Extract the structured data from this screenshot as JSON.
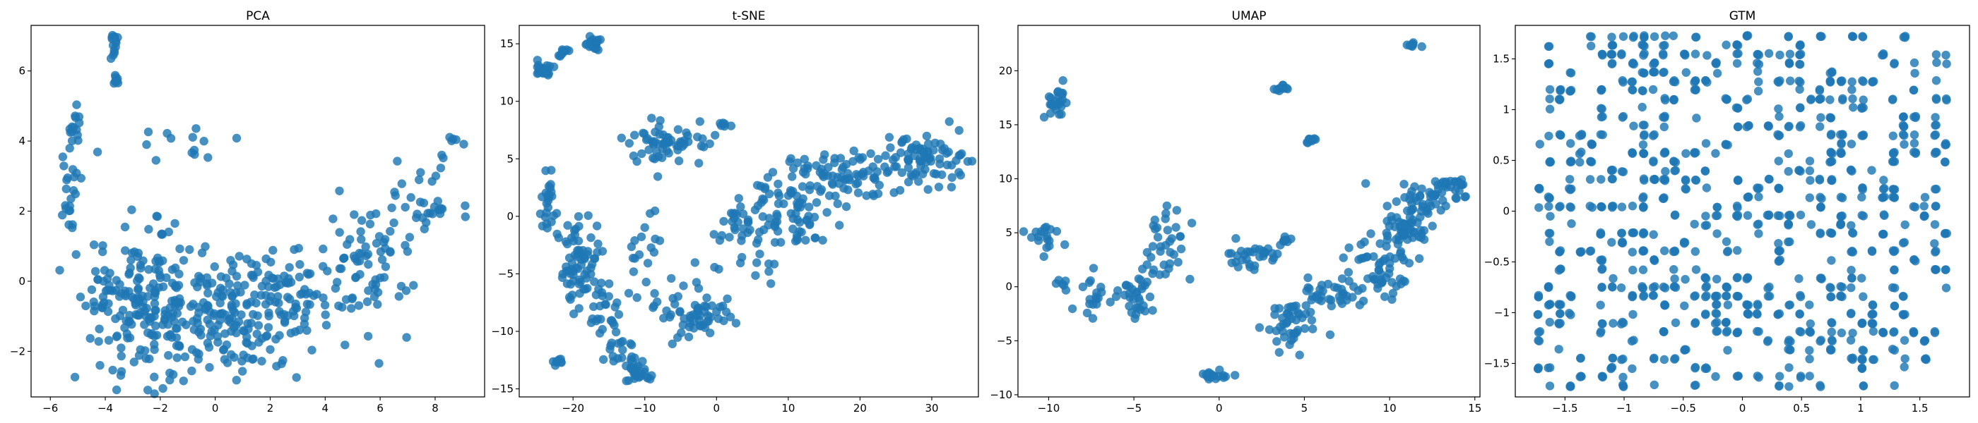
{
  "colors": {
    "points": "#1f77b4"
  },
  "chart_data": [
    {
      "type": "scatter",
      "title": "PCA",
      "xlim": [
        -6.7,
        9.8
      ],
      "ylim": [
        -3.3,
        7.3
      ],
      "xticks": [
        -6,
        -4,
        -2,
        0,
        2,
        4,
        6,
        8
      ],
      "yticks": [
        -2,
        0,
        2,
        4,
        6
      ],
      "grid": false,
      "clusters": [
        {
          "cx": -3.7,
          "cy": 6.8,
          "sx": 0.08,
          "sy": 0.25,
          "n": 14
        },
        {
          "cx": -3.6,
          "cy": 5.7,
          "sx": 0.06,
          "sy": 0.1,
          "n": 8
        },
        {
          "cx": -5.1,
          "cy": 4.3,
          "sx": 0.12,
          "sy": 0.3,
          "n": 12
        },
        {
          "cx": -5.3,
          "cy": 2.8,
          "sx": 0.18,
          "sy": 0.9,
          "n": 26
        },
        {
          "cx": -2.5,
          "cy": -0.7,
          "sx": 1.0,
          "sy": 1.0,
          "n": 180
        },
        {
          "cx": 0.5,
          "cy": -1.0,
          "sx": 1.3,
          "sy": 0.9,
          "n": 170
        },
        {
          "cx": 3.0,
          "cy": -0.4,
          "sx": 1.1,
          "sy": 0.6,
          "n": 70
        },
        {
          "cx": 5.5,
          "cy": 0.6,
          "sx": 0.9,
          "sy": 1.0,
          "n": 70
        },
        {
          "cx": 7.6,
          "cy": 2.4,
          "sx": 0.7,
          "sy": 0.6,
          "n": 30
        },
        {
          "cx": 8.8,
          "cy": 4.0,
          "sx": 0.25,
          "sy": 0.08,
          "n": 5
        },
        {
          "cx": -1.0,
          "cy": 3.9,
          "sx": 1.3,
          "sy": 0.4,
          "n": 14
        },
        {
          "cx": -4.2,
          "cy": -0.3,
          "sx": 0.2,
          "sy": 0.7,
          "n": 15
        }
      ]
    },
    {
      "type": "scatter",
      "title": "t-SNE",
      "xlim": [
        -27.5,
        36.5
      ],
      "ylim": [
        -15.7,
        16.6
      ],
      "xticks": [
        -20,
        -10,
        0,
        10,
        20,
        30
      ],
      "yticks": [
        -15,
        -10,
        -5,
        0,
        5,
        10,
        15
      ],
      "grid": false,
      "clusters": [
        {
          "cx": -24,
          "cy": 12.8,
          "sx": 0.8,
          "sy": 0.4,
          "n": 20
        },
        {
          "cx": -21.5,
          "cy": 14.3,
          "sx": 0.5,
          "sy": 0.3,
          "n": 10
        },
        {
          "cx": -17,
          "cy": 15.0,
          "sx": 0.5,
          "sy": 0.3,
          "n": 25
        },
        {
          "cx": -23.5,
          "cy": 0.8,
          "sx": 0.7,
          "sy": 1.2,
          "n": 25
        },
        {
          "cx": -19,
          "cy": -4.5,
          "sx": 1.3,
          "sy": 2.2,
          "n": 70
        },
        {
          "cx": -15,
          "cy": -8.0,
          "sx": 1.0,
          "sy": 1.3,
          "n": 25
        },
        {
          "cx": -11,
          "cy": -13.5,
          "sx": 0.8,
          "sy": 0.7,
          "n": 30
        },
        {
          "cx": -13.5,
          "cy": -11.5,
          "sx": 1.0,
          "sy": 0.8,
          "n": 15
        },
        {
          "cx": -7,
          "cy": 6.5,
          "sx": 2.8,
          "sy": 0.9,
          "n": 60
        },
        {
          "cx": 1,
          "cy": 7.9,
          "sx": 0.5,
          "sy": 0.1,
          "n": 6
        },
        {
          "cx": -3,
          "cy": -8.5,
          "sx": 2.6,
          "sy": 1.4,
          "n": 60
        },
        {
          "cx": 4,
          "cy": -2.0,
          "sx": 2.2,
          "sy": 2.2,
          "n": 50
        },
        {
          "cx": 11,
          "cy": 1.0,
          "sx": 3.0,
          "sy": 2.2,
          "n": 80
        },
        {
          "cx": 20,
          "cy": 3.8,
          "sx": 3.5,
          "sy": 1.0,
          "n": 60
        },
        {
          "cx": 29,
          "cy": 5.0,
          "sx": 2.6,
          "sy": 1.0,
          "n": 80
        },
        {
          "cx": -22,
          "cy": -12.8,
          "sx": 0.5,
          "sy": 0.3,
          "n": 8
        },
        {
          "cx": -10,
          "cy": -2.5,
          "sx": 1.5,
          "sy": 2.0,
          "n": 20
        }
      ]
    },
    {
      "type": "scatter",
      "title": "UMAP",
      "xlim": [
        -11.8,
        15.3
      ],
      "ylim": [
        -10.2,
        24.2
      ],
      "xticks": [
        -10,
        -5,
        0,
        5,
        10,
        15
      ],
      "yticks": [
        -10,
        -5,
        0,
        5,
        10,
        15,
        20
      ],
      "grid": false,
      "clusters": [
        {
          "cx": -9.5,
          "cy": 17.0,
          "sx": 0.3,
          "sy": 0.8,
          "n": 25
        },
        {
          "cx": -10.5,
          "cy": 4.5,
          "sx": 0.5,
          "sy": 0.6,
          "n": 18
        },
        {
          "cx": -9.2,
          "cy": 0.2,
          "sx": 0.2,
          "sy": 0.3,
          "n": 6
        },
        {
          "cx": -7.5,
          "cy": -1.0,
          "sx": 0.6,
          "sy": 1.0,
          "n": 20
        },
        {
          "cx": -4.8,
          "cy": -0.8,
          "sx": 0.4,
          "sy": 1.2,
          "n": 30
        },
        {
          "cx": -3.3,
          "cy": 3.5,
          "sx": 0.6,
          "sy": 2.0,
          "n": 35
        },
        {
          "cx": -0.1,
          "cy": -8.3,
          "sx": 0.5,
          "sy": 0.2,
          "n": 18
        },
        {
          "cx": 3.6,
          "cy": 18.3,
          "sx": 0.2,
          "sy": 0.2,
          "n": 10
        },
        {
          "cx": 5.3,
          "cy": 13.6,
          "sx": 0.2,
          "sy": 0.2,
          "n": 10
        },
        {
          "cx": 11.3,
          "cy": 22.3,
          "sx": 0.2,
          "sy": 0.2,
          "n": 10
        },
        {
          "cx": 2.0,
          "cy": 3.0,
          "sx": 1.0,
          "sy": 0.7,
          "n": 30
        },
        {
          "cx": 4.0,
          "cy": -3.5,
          "sx": 0.7,
          "sy": 1.3,
          "n": 40
        },
        {
          "cx": 6.5,
          "cy": -1.0,
          "sx": 1.1,
          "sy": 1.5,
          "n": 40
        },
        {
          "cx": 9.5,
          "cy": 1.5,
          "sx": 0.9,
          "sy": 1.8,
          "n": 50
        },
        {
          "cx": 11.0,
          "cy": 5.5,
          "sx": 0.7,
          "sy": 1.5,
          "n": 60
        },
        {
          "cx": 12.5,
          "cy": 8.5,
          "sx": 1.2,
          "sy": 0.6,
          "n": 40
        },
        {
          "cx": 13.6,
          "cy": 9.6,
          "sx": 0.5,
          "sy": 0.2,
          "n": 15
        },
        {
          "cx": 3.8,
          "cy": 4.3,
          "sx": 0.2,
          "sy": 0.2,
          "n": 8
        }
      ]
    },
    {
      "type": "scatter",
      "title": "GTM",
      "xlim": [
        -1.92,
        1.92
      ],
      "ylim": [
        -1.83,
        1.83
      ],
      "xticks": [
        -1.5,
        -1.0,
        -0.5,
        0.0,
        0.5,
        1.0,
        1.5
      ],
      "yticks": [
        -1.5,
        -1.0,
        -0.5,
        0.0,
        0.5,
        1.0,
        1.5
      ],
      "grid": false,
      "layout": "grid-lattice",
      "lattice": {
        "nx": 40,
        "ny": 40,
        "range": 1.72,
        "occupancy": 0.3
      }
    }
  ]
}
